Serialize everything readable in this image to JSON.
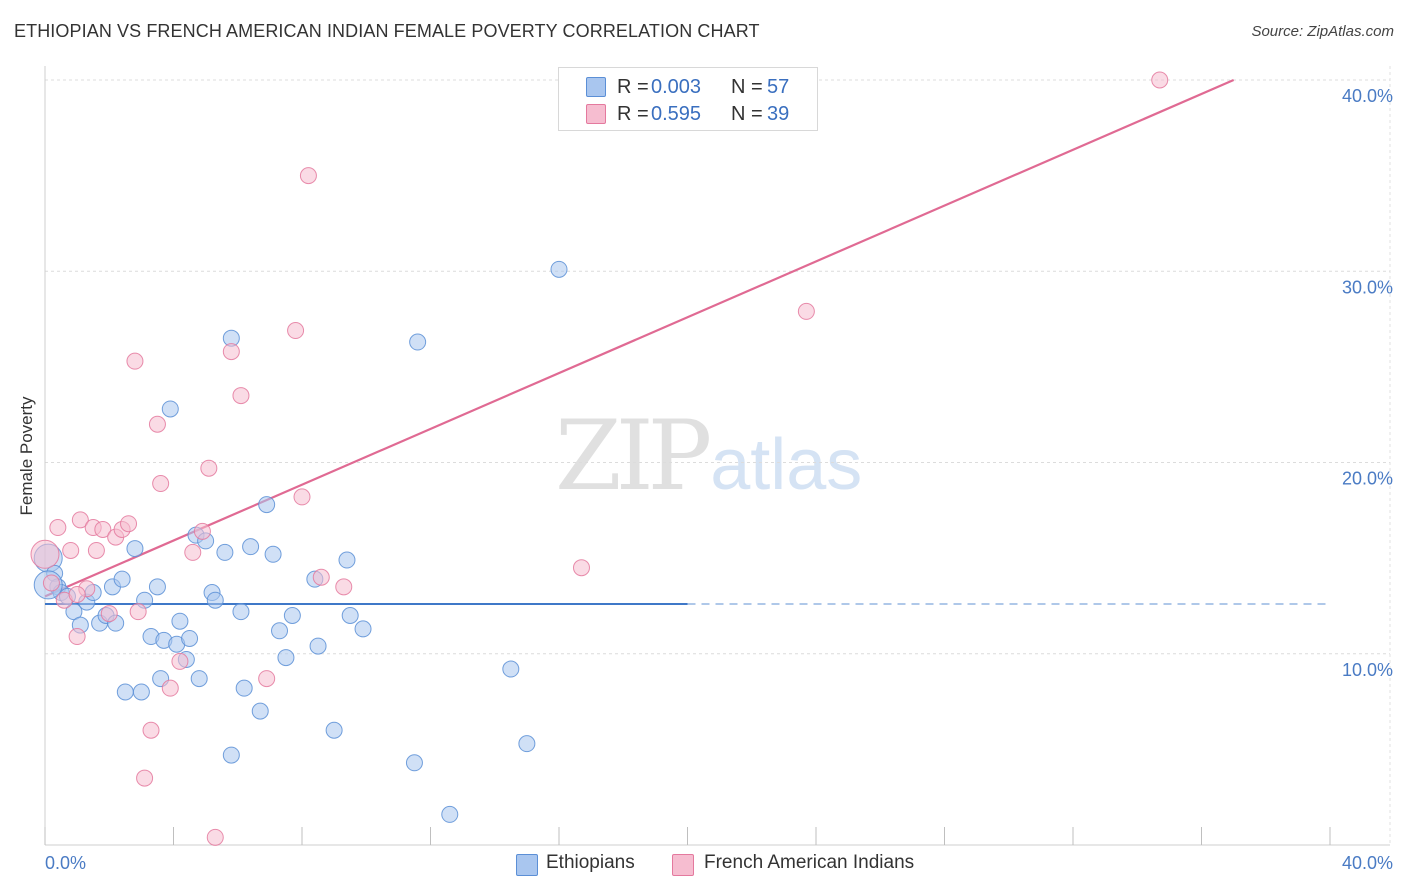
{
  "header": {
    "title": "ETHIOPIAN VS FRENCH AMERICAN INDIAN FEMALE POVERTY CORRELATION CHART",
    "source": "Source: ZipAtlas.com"
  },
  "watermark": {
    "zip": "ZIP",
    "atlas": "atlas"
  },
  "legend": {
    "rows": [
      {
        "r_label": "R =",
        "r_value": "0.003",
        "n_label": "N =",
        "n_value": "57",
        "color": "#a9c6ef",
        "border": "#5b8fd6"
      },
      {
        "r_label": "R =",
        "r_value": "0.595",
        "n_label": "N =",
        "n_value": "39",
        "color": "#f6bdd0",
        "border": "#e4799e"
      }
    ]
  },
  "bottom_legend": [
    {
      "label": "Ethiopians",
      "color": "#a9c6ef",
      "border": "#5b8fd6"
    },
    {
      "label": "French American Indians",
      "color": "#f6bdd0",
      "border": "#e4799e"
    }
  ],
  "chart_data": {
    "type": "scatter",
    "title": "ETHIOPIAN VS FRENCH AMERICAN INDIAN FEMALE POVERTY CORRELATION CHART",
    "xlabel": "",
    "ylabel": "Female Poverty",
    "xlim": [
      0,
      40
    ],
    "ylim": [
      0,
      40
    ],
    "x_tick_labels": [
      "0.0%",
      "40.0%"
    ],
    "y_tick_labels": [
      "10.0%",
      "20.0%",
      "30.0%",
      "40.0%"
    ],
    "y_ticks": [
      10,
      20,
      30,
      40
    ],
    "grid": true,
    "series": [
      {
        "name": "Ethiopians",
        "color": "#5b8fd6",
        "fill": "#a9c6ef",
        "points": [
          [
            0.1,
            15.0
          ],
          [
            0.3,
            14.2
          ],
          [
            0.4,
            13.5
          ],
          [
            0.5,
            13.2
          ],
          [
            0.7,
            13.0
          ],
          [
            0.9,
            12.2
          ],
          [
            1.1,
            11.5
          ],
          [
            1.3,
            12.7
          ],
          [
            1.5,
            13.2
          ],
          [
            1.7,
            11.6
          ],
          [
            1.9,
            12.0
          ],
          [
            2.1,
            13.5
          ],
          [
            2.2,
            11.6
          ],
          [
            2.4,
            13.9
          ],
          [
            2.5,
            8.0
          ],
          [
            2.8,
            15.5
          ],
          [
            3.0,
            8.0
          ],
          [
            3.1,
            12.8
          ],
          [
            3.3,
            10.9
          ],
          [
            3.5,
            13.5
          ],
          [
            3.6,
            8.7
          ],
          [
            3.7,
            10.7
          ],
          [
            3.9,
            22.8
          ],
          [
            4.1,
            10.5
          ],
          [
            4.2,
            11.7
          ],
          [
            4.4,
            9.7
          ],
          [
            4.5,
            10.8
          ],
          [
            4.7,
            16.2
          ],
          [
            4.8,
            8.7
          ],
          [
            5.0,
            15.9
          ],
          [
            5.2,
            13.2
          ],
          [
            5.3,
            12.8
          ],
          [
            5.6,
            15.3
          ],
          [
            5.8,
            26.5
          ],
          [
            5.8,
            4.7
          ],
          [
            6.1,
            12.2
          ],
          [
            6.2,
            8.2
          ],
          [
            6.4,
            15.6
          ],
          [
            6.7,
            7.0
          ],
          [
            6.9,
            17.8
          ],
          [
            7.1,
            15.2
          ],
          [
            7.3,
            11.2
          ],
          [
            7.5,
            9.8
          ],
          [
            7.7,
            12.0
          ],
          [
            8.4,
            13.9
          ],
          [
            8.5,
            10.4
          ],
          [
            9.0,
            6.0
          ],
          [
            9.4,
            14.9
          ],
          [
            9.5,
            12.0
          ],
          [
            9.9,
            11.3
          ],
          [
            11.6,
            26.3
          ],
          [
            11.5,
            4.3
          ],
          [
            12.6,
            1.6
          ],
          [
            14.5,
            9.2
          ],
          [
            15.0,
            5.3
          ],
          [
            16.0,
            30.1
          ],
          [
            0.1,
            13.6
          ]
        ],
        "trend": {
          "x": [
            0,
            20
          ],
          "y": [
            12.6,
            12.6
          ],
          "dashed_to_x": 40
        }
      },
      {
        "name": "French American Indians",
        "color": "#e4799e",
        "fill": "#f6bdd0",
        "points": [
          [
            0.0,
            15.2
          ],
          [
            0.4,
            16.6
          ],
          [
            0.6,
            12.8
          ],
          [
            0.8,
            15.4
          ],
          [
            1.0,
            10.9
          ],
          [
            1.1,
            17.0
          ],
          [
            1.3,
            13.4
          ],
          [
            1.5,
            16.6
          ],
          [
            1.6,
            15.4
          ],
          [
            1.8,
            16.5
          ],
          [
            2.0,
            12.1
          ],
          [
            2.2,
            16.1
          ],
          [
            2.4,
            16.5
          ],
          [
            2.6,
            16.8
          ],
          [
            2.8,
            25.3
          ],
          [
            2.9,
            12.2
          ],
          [
            3.1,
            3.5
          ],
          [
            3.3,
            6.0
          ],
          [
            3.5,
            22.0
          ],
          [
            3.6,
            18.9
          ],
          [
            3.9,
            8.2
          ],
          [
            4.2,
            9.6
          ],
          [
            4.6,
            15.3
          ],
          [
            4.9,
            16.4
          ],
          [
            5.1,
            19.7
          ],
          [
            5.3,
            0.4
          ],
          [
            5.8,
            25.8
          ],
          [
            6.1,
            23.5
          ],
          [
            6.9,
            8.7
          ],
          [
            7.8,
            26.9
          ],
          [
            8.0,
            18.2
          ],
          [
            8.2,
            35.0
          ],
          [
            8.6,
            14.0
          ],
          [
            9.3,
            13.5
          ],
          [
            16.7,
            14.5
          ],
          [
            23.7,
            27.9
          ],
          [
            34.7,
            40.0
          ],
          [
            0.2,
            13.7
          ],
          [
            1.0,
            13.1
          ]
        ],
        "trend": {
          "x": [
            0,
            37
          ],
          "y": [
            13.0,
            40.0
          ]
        }
      }
    ]
  }
}
